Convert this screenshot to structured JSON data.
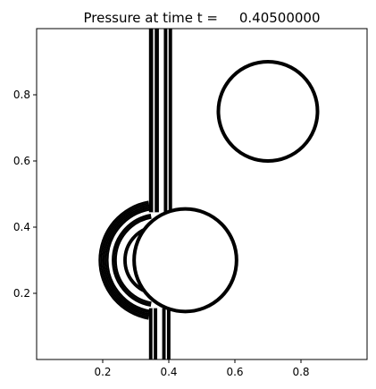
{
  "chart_data": {
    "type": "contour",
    "title": "Pressure at time t =     0.40500000",
    "xlabel": "",
    "ylabel": "",
    "xlim": [
      0.0,
      1.0
    ],
    "ylim": [
      0.0,
      1.0
    ],
    "x_ticks": [
      0.2,
      0.4,
      0.6,
      0.8
    ],
    "x_tick_labels": [
      "0.2",
      "0.4",
      "0.6",
      "0.8"
    ],
    "y_ticks": [
      0.2,
      0.4,
      0.6,
      0.8
    ],
    "y_tick_labels": [
      "0.2",
      "0.4",
      "0.6",
      "0.8"
    ],
    "grid": false,
    "legend": "none",
    "line_color": "#000000",
    "circles": [
      {
        "cx": 0.7,
        "cy": 0.75,
        "r": 0.15
      },
      {
        "cx": 0.45,
        "cy": 0.3,
        "r": 0.155
      }
    ],
    "vertical_bands": [
      {
        "x_start": 0.34,
        "x_end": 0.37,
        "y_from": 0.445,
        "y_to": 1.0
      },
      {
        "x_start": 0.385,
        "x_end": 0.41,
        "y_from": 0.445,
        "y_to": 1.0
      },
      {
        "x_start": 0.34,
        "x_end": 0.365,
        "y_from": 0.0,
        "y_to": 0.155
      },
      {
        "x_start": 0.38,
        "x_end": 0.405,
        "y_from": 0.0,
        "y_to": 0.155
      }
    ],
    "shock_arcs": [
      {
        "cx": 0.37,
        "cy": 0.3,
        "r": 0.18
      },
      {
        "cx": 0.37,
        "cy": 0.3,
        "r": 0.175
      },
      {
        "cx": 0.37,
        "cy": 0.3,
        "r": 0.17
      },
      {
        "cx": 0.37,
        "cy": 0.3,
        "r": 0.165
      },
      {
        "cx": 0.37,
        "cy": 0.3,
        "r": 0.16
      },
      {
        "cx": 0.37,
        "cy": 0.3,
        "r": 0.155
      },
      {
        "cx": 0.37,
        "cy": 0.3,
        "r": 0.14
      },
      {
        "cx": 0.37,
        "cy": 0.3,
        "r": 0.135
      },
      {
        "cx": 0.37,
        "cy": 0.3,
        "r": 0.13
      },
      {
        "cx": 0.37,
        "cy": 0.3,
        "r": 0.105
      },
      {
        "cx": 0.37,
        "cy": 0.3,
        "r": 0.1
      }
    ],
    "dashed_arcs": [
      {
        "cx": 0.37,
        "cy": 0.3,
        "r": 0.075
      },
      {
        "cx": 0.37,
        "cy": 0.3,
        "r": 0.065
      }
    ]
  }
}
